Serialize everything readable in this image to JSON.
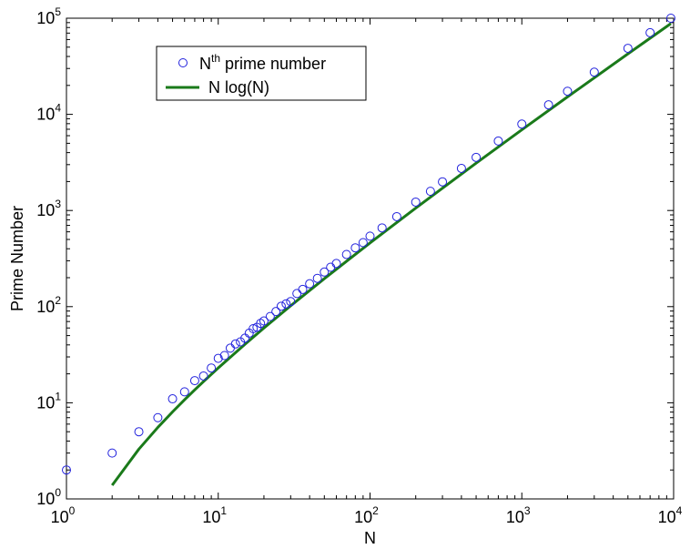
{
  "chart_data": {
    "type": "scatter",
    "xscale": "log",
    "yscale": "log",
    "xlim": [
      1,
      10000
    ],
    "ylim": [
      1,
      100000
    ],
    "xlabel": "N",
    "ylabel": "Prime Number",
    "grid": false,
    "legend_position": "top-left",
    "x_ticks": [
      1,
      10,
      100,
      1000,
      10000
    ],
    "x_tick_labels": [
      {
        "base": "10",
        "exp": "0"
      },
      {
        "base": "10",
        "exp": "1"
      },
      {
        "base": "10",
        "exp": "2"
      },
      {
        "base": "10",
        "exp": "3"
      },
      {
        "base": "10",
        "exp": "4"
      }
    ],
    "y_ticks": [
      1,
      10,
      100,
      1000,
      10000,
      100000
    ],
    "y_tick_labels": [
      {
        "base": "10",
        "exp": "0"
      },
      {
        "base": "10",
        "exp": "1"
      },
      {
        "base": "10",
        "exp": "2"
      },
      {
        "base": "10",
        "exp": "3"
      },
      {
        "base": "10",
        "exp": "4"
      },
      {
        "base": "10",
        "exp": "5"
      }
    ],
    "series": [
      {
        "name_base": "N",
        "name_sup": "th",
        "name_rest": " prime number",
        "kind": "markers",
        "marker": "circle",
        "color": "#2222dd",
        "x": [
          1,
          2,
          3,
          4,
          5,
          6,
          7,
          8,
          9,
          10,
          11,
          12,
          13,
          14,
          15,
          16,
          17,
          18,
          19,
          20,
          22,
          24,
          26,
          28,
          30,
          33,
          36,
          40,
          45,
          50,
          55,
          60,
          70,
          80,
          90,
          100,
          120,
          150,
          200,
          250,
          300,
          400,
          500,
          700,
          1000,
          1500,
          2000,
          3000,
          5000,
          7000,
          9592
        ],
        "y": [
          2,
          3,
          5,
          7,
          11,
          13,
          17,
          19,
          23,
          29,
          31,
          37,
          41,
          43,
          47,
          53,
          59,
          61,
          67,
          71,
          79,
          89,
          101,
          107,
          113,
          137,
          151,
          173,
          197,
          229,
          257,
          281,
          349,
          409,
          463,
          541,
          659,
          863,
          1223,
          1583,
          1987,
          2741,
          3571,
          5279,
          7919,
          12553,
          17389,
          27449,
          48611,
          70657,
          99991
        ]
      },
      {
        "name": "N log(N)",
        "kind": "line",
        "color": "#1a7a1a",
        "x": [
          2,
          3,
          4,
          5,
          6,
          7,
          8,
          10,
          15,
          20,
          30,
          50,
          100,
          200,
          500,
          1000,
          2000,
          5000,
          9592
        ],
        "y": [
          1.386,
          3.296,
          5.545,
          8.047,
          10.751,
          13.621,
          16.636,
          23.026,
          40.621,
          59.915,
          102.04,
          195.6,
          460.5,
          1059.7,
          3107.3,
          6907.8,
          15201.8,
          42586,
          88005
        ]
      }
    ]
  }
}
